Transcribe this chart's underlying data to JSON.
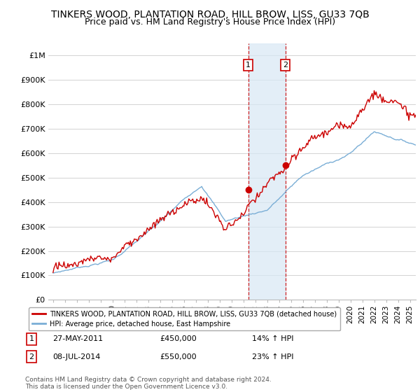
{
  "title": "TINKERS WOOD, PLANTATION ROAD, HILL BROW, LISS, GU33 7QB",
  "subtitle": "Price paid vs. HM Land Registry's House Price Index (HPI)",
  "ylabel_ticks": [
    "£0",
    "£100K",
    "£200K",
    "£300K",
    "£400K",
    "£500K",
    "£600K",
    "£700K",
    "£800K",
    "£900K",
    "£1M"
  ],
  "ytick_values": [
    0,
    100000,
    200000,
    300000,
    400000,
    500000,
    600000,
    700000,
    800000,
    900000,
    1000000
  ],
  "ylim": [
    0,
    1050000
  ],
  "xlim_start": 1994.6,
  "xlim_end": 2025.5,
  "line1_color": "#cc0000",
  "line2_color": "#7aaed6",
  "sale1_x": 2011.41,
  "sale1_y": 450000,
  "sale2_x": 2014.54,
  "sale2_y": 550000,
  "sale1_label": "1",
  "sale2_label": "2",
  "sale1_date": "27-MAY-2011",
  "sale1_price": "£450,000",
  "sale1_hpi": "14% ↑ HPI",
  "sale2_date": "08-JUL-2014",
  "sale2_price": "£550,000",
  "sale2_hpi": "23% ↑ HPI",
  "legend_line1": "TINKERS WOOD, PLANTATION ROAD, HILL BROW, LISS, GU33 7QB (detached house)",
  "legend_line2": "HPI: Average price, detached house, East Hampshire",
  "footer": "Contains HM Land Registry data © Crown copyright and database right 2024.\nThis data is licensed under the Open Government Licence v3.0.",
  "background_color": "#ffffff",
  "grid_color": "#cccccc",
  "highlight_fill": "#d8e8f5",
  "sale_box_color": "#cc0000",
  "title_fontsize": 10,
  "subtitle_fontsize": 9
}
